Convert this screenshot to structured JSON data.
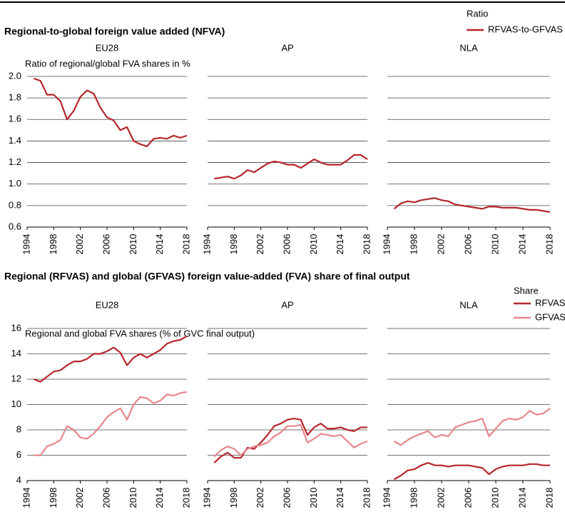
{
  "chart_data": [
    {
      "type": "line",
      "title": "Regional-to-global foreign value added (NFVA)",
      "y_label": "Ratio of regional/global FVA shares in %",
      "legend_title": "Ratio",
      "xlim": [
        1994,
        2018
      ],
      "xticks": [
        1994,
        1998,
        2002,
        2006,
        2010,
        2014,
        2018
      ],
      "ylim": [
        0.6,
        2.0
      ],
      "yticks": [
        0.6,
        0.8,
        {
          "value": 1.0,
          "label": "1.0"
        },
        1.2,
        1.4,
        1.6,
        1.8,
        {
          "value": 2.0,
          "label": "2.0"
        }
      ],
      "grid": true,
      "x": [
        1995,
        1996,
        1997,
        1998,
        1999,
        2000,
        2001,
        2002,
        2003,
        2004,
        2005,
        2006,
        2007,
        2008,
        2009,
        2010,
        2011,
        2012,
        2013,
        2014,
        2015,
        2016,
        2017,
        2018
      ],
      "series": [
        {
          "name": "RFVAS-to-GFVAS",
          "color": "#b5262b"
        }
      ],
      "panels": [
        {
          "title": "EU28",
          "values": [
            [
              1.98,
              1.96,
              1.83,
              1.83,
              1.77,
              1.6,
              1.68,
              1.81,
              1.87,
              1.84,
              1.71,
              1.62,
              1.59,
              1.5,
              1.53,
              1.4,
              1.37,
              1.35,
              1.42,
              1.43,
              1.42,
              1.45,
              1.43,
              1.45
            ]
          ]
        },
        {
          "title": "AP",
          "values": [
            [
              1.05,
              1.06,
              1.07,
              1.05,
              1.08,
              1.13,
              1.11,
              1.15,
              1.19,
              1.21,
              1.2,
              1.18,
              1.18,
              1.15,
              1.19,
              1.23,
              1.2,
              1.18,
              1.18,
              1.18,
              1.22,
              1.27,
              1.27,
              1.23
            ]
          ]
        },
        {
          "title": "NLA",
          "values": [
            [
              0.77,
              0.82,
              0.84,
              0.83,
              0.85,
              0.86,
              0.87,
              0.85,
              0.84,
              0.81,
              0.8,
              0.79,
              0.78,
              0.77,
              0.79,
              0.79,
              0.78,
              0.78,
              0.78,
              0.77,
              0.76,
              0.76,
              0.75,
              0.74
            ]
          ]
        }
      ]
    },
    {
      "type": "line",
      "title": "Regional (RFVAS) and global (GFVAS) foreign value-added (FVA) share of final output",
      "y_label": "Regional and global FVA shares (% of GVC final output)",
      "legend_title": "Share",
      "xlim": [
        1994,
        2018
      ],
      "xticks": [
        1994,
        1998,
        2002,
        2006,
        2010,
        2014,
        2018
      ],
      "ylim": [
        4,
        16
      ],
      "yticks": [
        4,
        6,
        8,
        10,
        12,
        14,
        16
      ],
      "grid": true,
      "x": [
        1995,
        1996,
        1997,
        1998,
        1999,
        2000,
        2001,
        2002,
        2003,
        2004,
        2005,
        2006,
        2007,
        2008,
        2009,
        2010,
        2011,
        2012,
        2013,
        2014,
        2015,
        2016,
        2017,
        2018
      ],
      "series": [
        {
          "name": "RFVAS",
          "color": "#b5262b"
        },
        {
          "name": "GFVAS",
          "color": "#e8868b"
        }
      ],
      "panels": [
        {
          "title": "EU28",
          "values": [
            [
              12.0,
              11.8,
              12.2,
              12.6,
              12.7,
              13.1,
              13.4,
              13.4,
              13.6,
              14.0,
              14.0,
              14.2,
              14.5,
              14.1,
              13.1,
              13.7,
              14.0,
              13.7,
              14.0,
              14.3,
              14.8,
              15.0,
              15.1,
              15.4
            ],
            [
              6.0,
              6.0,
              6.7,
              6.9,
              7.2,
              8.3,
              8.0,
              7.4,
              7.3,
              7.7,
              8.3,
              9.0,
              9.4,
              9.7,
              8.8,
              10.0,
              10.6,
              10.5,
              10.1,
              10.3,
              10.8,
              10.7,
              10.9,
              11.0
            ]
          ]
        },
        {
          "title": "AP",
          "values": [
            [
              5.4,
              5.9,
              6.2,
              5.8,
              5.8,
              6.6,
              6.5,
              7.0,
              7.6,
              8.3,
              8.5,
              8.8,
              8.9,
              8.8,
              7.6,
              8.2,
              8.5,
              8.1,
              8.1,
              8.2,
              8.0,
              7.9,
              8.2,
              8.2
            ],
            [
              5.9,
              6.4,
              6.7,
              6.5,
              6.0,
              6.5,
              6.7,
              6.8,
              7.0,
              7.5,
              7.8,
              8.3,
              8.3,
              8.4,
              7.0,
              7.3,
              7.7,
              7.6,
              7.5,
              7.6,
              7.1,
              6.6,
              6.9,
              7.1
            ]
          ]
        },
        {
          "title": "NLA",
          "values": [
            [
              4.1,
              4.4,
              4.8,
              4.9,
              5.2,
              5.4,
              5.2,
              5.2,
              5.1,
              5.2,
              5.2,
              5.2,
              5.1,
              5.0,
              4.5,
              4.9,
              5.1,
              5.2,
              5.2,
              5.2,
              5.3,
              5.3,
              5.2,
              5.2
            ],
            [
              7.1,
              6.8,
              7.2,
              7.5,
              7.7,
              7.9,
              7.4,
              7.6,
              7.5,
              8.2,
              8.4,
              8.6,
              8.7,
              8.9,
              7.5,
              8.1,
              8.7,
              8.9,
              8.8,
              9.0,
              9.5,
              9.2,
              9.3,
              9.7
            ]
          ]
        }
      ]
    }
  ]
}
